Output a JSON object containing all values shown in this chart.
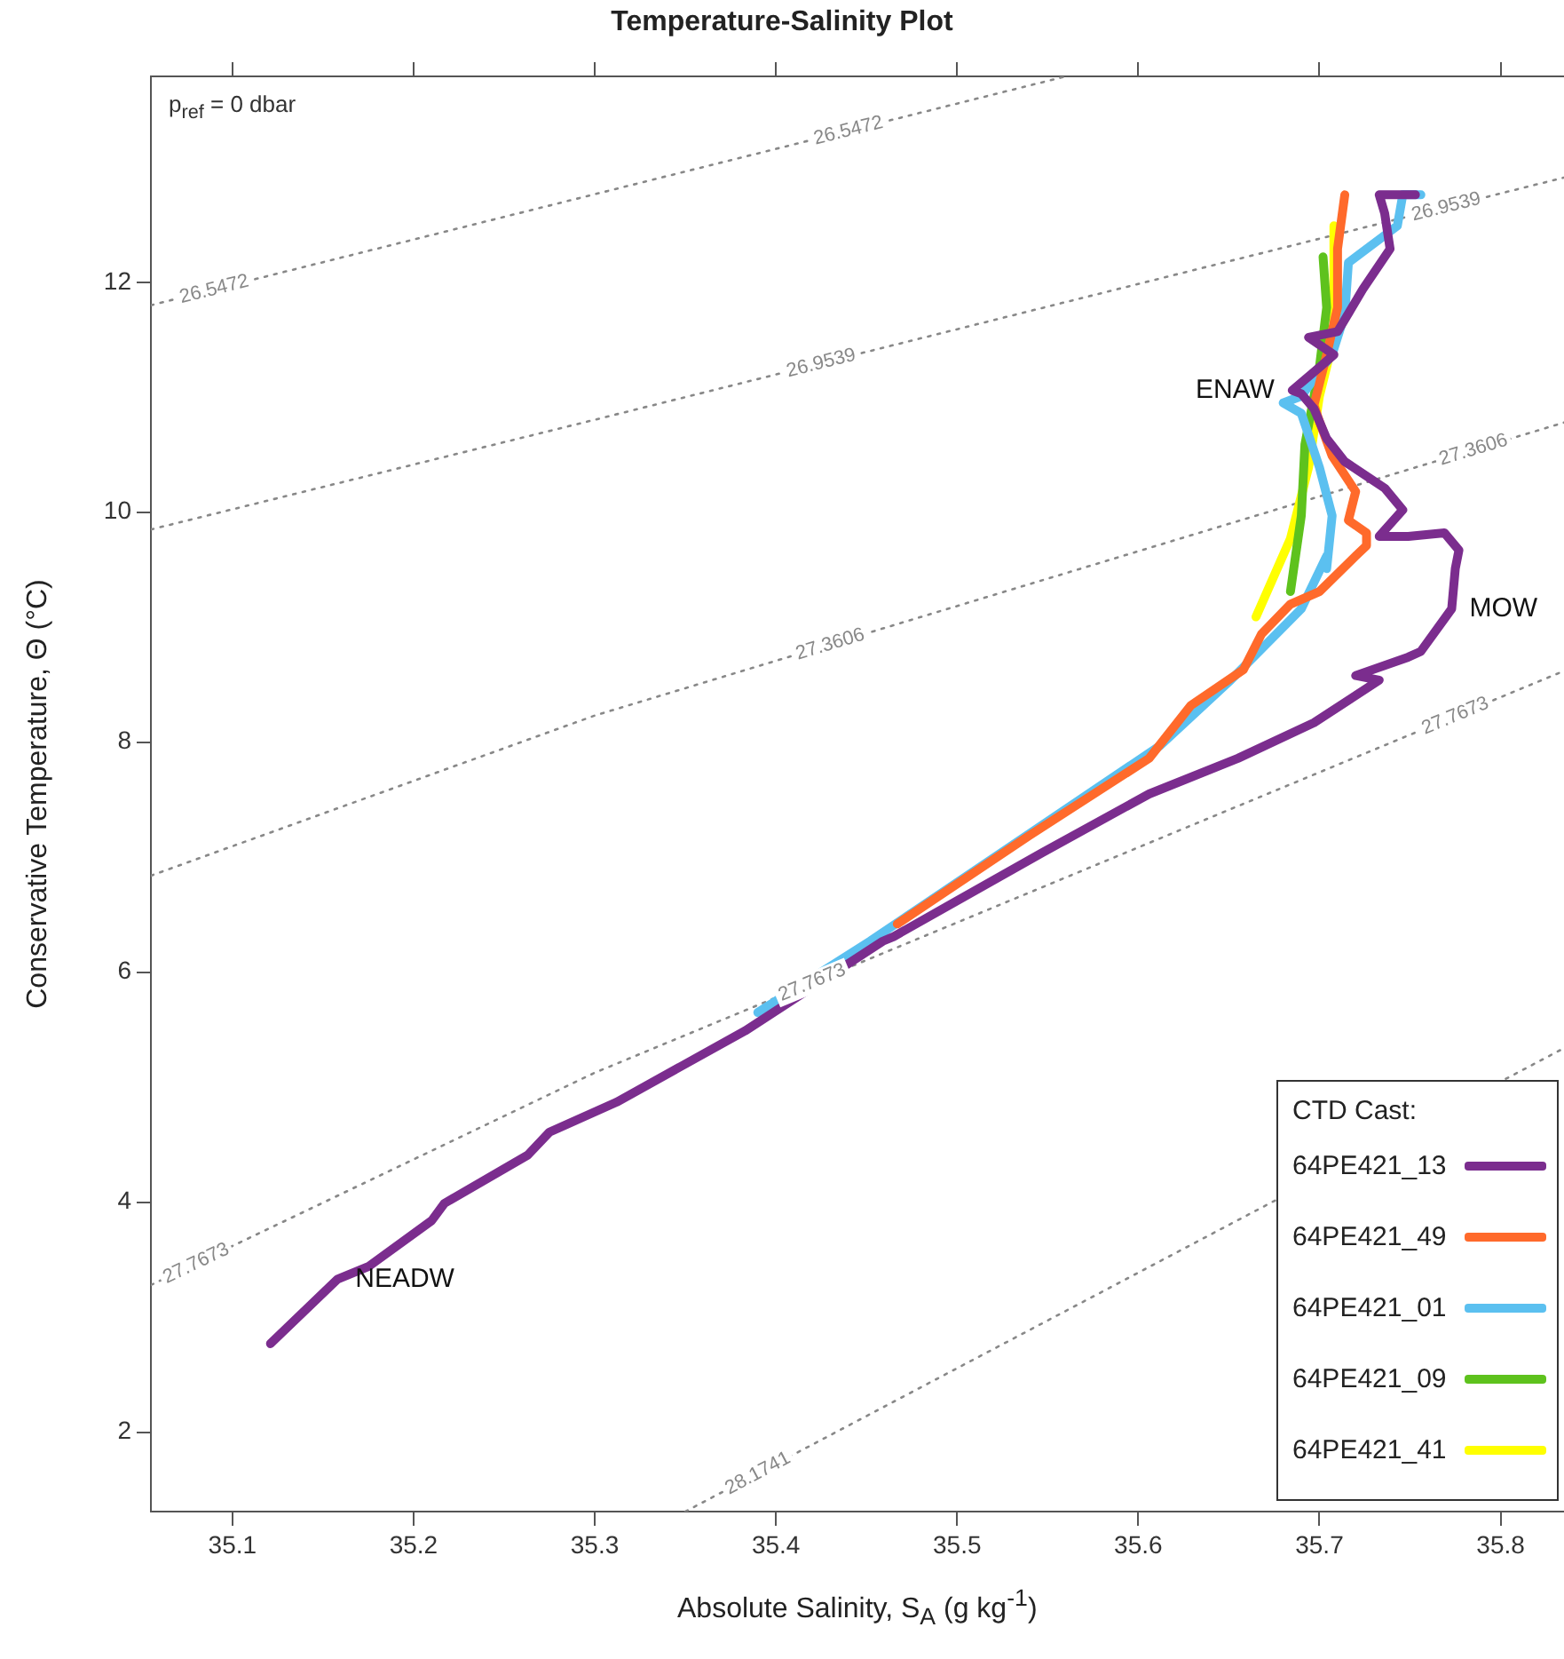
{
  "chart_data": {
    "type": "line",
    "title": "Temperature-Salinity Plot",
    "xlabel": "Absolute Salinity, S$_{A}$ (g kg$^{-1}$)",
    "ylabel": "Conservative Temperature, Θ (°C)",
    "legend_title": "CTD Cast:",
    "legend": "bottom right",
    "grid": false,
    "marker": "none",
    "xlim": [
      35.055,
      35.835
    ],
    "xticks": [
      35.1,
      35.2,
      35.3,
      35.4,
      35.5,
      35.6,
      35.7,
      35.8
    ],
    "ylim": [
      1.31,
      13.79
    ],
    "yticks": [
      2,
      4,
      6,
      8,
      10,
      12
    ],
    "series": [
      {
        "name": "64PE421_13",
        "color": "#7b2d8e",
        "x": [
          35.121,
          35.158,
          35.175,
          35.21,
          35.217,
          35.263,
          35.275,
          35.312,
          35.383,
          35.459,
          35.465,
          35.547,
          35.606,
          35.655,
          35.697,
          35.733,
          35.72,
          35.749,
          35.756,
          35.773,
          35.775,
          35.777,
          35.769,
          35.749,
          35.733,
          35.746,
          35.736,
          35.714,
          35.704,
          35.697,
          35.69,
          35.685,
          35.7,
          35.708,
          35.694,
          35.71,
          35.724,
          35.739,
          35.736,
          35.733,
          35.753
        ],
        "values": [
          2.77,
          3.33,
          3.44,
          3.84,
          3.99,
          4.41,
          4.61,
          4.87,
          5.49,
          6.27,
          6.31,
          7.04,
          7.55,
          7.86,
          8.17,
          8.54,
          8.58,
          8.74,
          8.79,
          9.16,
          9.51,
          9.67,
          9.82,
          9.79,
          9.79,
          10.02,
          10.21,
          10.44,
          10.64,
          10.9,
          11.03,
          11.06,
          11.26,
          11.37,
          11.52,
          11.57,
          11.94,
          12.29,
          12.6,
          12.76,
          12.76
        ]
      },
      {
        "name": "64PE421_49",
        "color": "#ff6a2b",
        "x": [
          35.467,
          35.54,
          35.606,
          35.629,
          35.658,
          35.668,
          35.684,
          35.7,
          35.72,
          35.726,
          35.726,
          35.716,
          35.72,
          35.707,
          35.7,
          35.697,
          35.704,
          35.71,
          35.71,
          35.714
        ],
        "values": [
          6.42,
          7.19,
          7.86,
          8.32,
          8.63,
          8.94,
          9.2,
          9.31,
          9.62,
          9.71,
          9.82,
          9.93,
          10.18,
          10.49,
          10.79,
          10.93,
          11.37,
          11.78,
          12.29,
          12.76
        ]
      },
      {
        "name": "64PE421_01",
        "color": "#5bc0f0",
        "x": [
          35.39,
          35.452,
          35.514,
          35.612,
          35.651,
          35.69,
          35.704,
          35.704,
          35.707,
          35.7,
          35.69,
          35.68,
          35.69,
          35.707,
          35.714,
          35.716,
          35.743,
          35.746,
          35.756
        ],
        "values": [
          5.65,
          6.27,
          6.93,
          7.97,
          8.54,
          9.16,
          9.62,
          9.51,
          9.97,
          10.39,
          10.86,
          10.95,
          11.01,
          11.37,
          11.72,
          12.17,
          12.49,
          12.76,
          12.76
        ]
      },
      {
        "name": "64PE421_09",
        "color": "#5ec21d",
        "x": [
          35.684,
          35.69,
          35.692,
          35.7,
          35.704,
          35.702
        ],
        "values": [
          9.31,
          9.97,
          10.59,
          11.26,
          11.78,
          12.22
        ]
      },
      {
        "name": "64PE421_41",
        "color": "#ffff00",
        "x": [
          35.665,
          35.684,
          35.694,
          35.7,
          35.708,
          35.708
        ],
        "values": [
          9.09,
          9.77,
          10.39,
          11.01,
          11.52,
          12.49
        ]
      },
      {
        "type": "line",
        "color": "#888888",
        "line_style": "dotted",
        "x": [
          35.055,
          35.56
        ],
        "values": [
          11.8,
          13.79
        ]
      },
      {
        "type": "line",
        "color": "#888888",
        "line_style": "dotted",
        "x": [
          35.055,
          35.3,
          35.835
        ],
        "values": [
          9.85,
          10.804,
          12.91
        ]
      },
      {
        "type": "line",
        "color": "#888888",
        "line_style": "dotted",
        "x": [
          35.055,
          35.3,
          35.835
        ],
        "values": [
          6.84,
          8.232,
          10.78
        ]
      },
      {
        "type": "line",
        "color": "#888888",
        "line_style": "dotted",
        "x": [
          35.055,
          35.3,
          35.835
        ],
        "values": [
          3.28,
          5.126,
          8.62
        ]
      },
      {
        "type": "line",
        "color": "#888888",
        "line_style": "dotted",
        "x": [
          35.35,
          35.835
        ],
        "values": [
          1.31,
          5.34
        ]
      }
    ],
    "annotations": [
      "p$_{ref}$ = 0 dbar",
      {
        "text": "26.5472",
        "x": 35.09,
        "y": 11.938
      },
      {
        "text": "26.5472",
        "x": 35.44,
        "y": 13.317
      },
      {
        "text": "26.9539",
        "x": 35.425,
        "y": 11.296
      },
      {
        "text": "26.9539",
        "x": 35.77,
        "y": 12.654
      },
      {
        "text": "27.3606",
        "x": 35.43,
        "y": 8.851
      },
      {
        "text": "27.3606",
        "x": 35.785,
        "y": 10.542
      },
      {
        "text": "27.7673",
        "x": 35.08,
        "y": 3.468
      },
      {
        "text": "27.7673",
        "x": 35.42,
        "y": 5.91
      },
      {
        "text": "27.7673",
        "x": 35.775,
        "y": 8.228
      },
      {
        "text": "28.1741",
        "x": 35.39,
        "y": 1.642
      },
      {
        "text": "ENAW",
        "x": 35.685,
        "y": 11.06
      },
      {
        "text": "MOW",
        "x": 35.773,
        "y": 9.16
      },
      {
        "text": "NEADW",
        "x": 35.158,
        "y": 3.33
      }
    ]
  }
}
